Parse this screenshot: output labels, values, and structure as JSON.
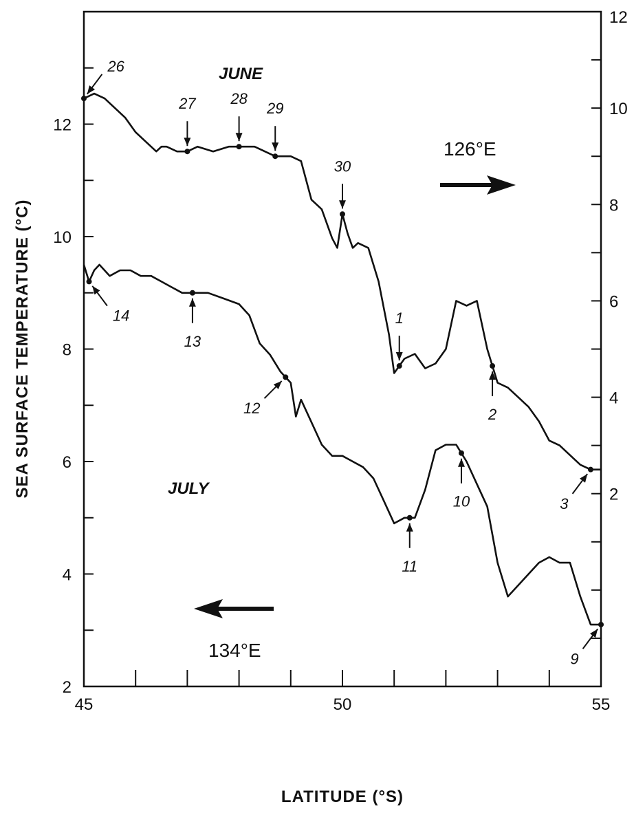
{
  "chart_data": {
    "type": "line",
    "xlabel": "LATITUDE (°S)",
    "ylabel": "SEA SURFACE TEMPERATURE (°C)",
    "xlim": [
      45,
      55
    ],
    "ylim_left": [
      2,
      14
    ],
    "ylim_right": [
      -2,
      12
    ],
    "x_ticks": [
      45,
      50,
      55
    ],
    "y_ticks_left": [
      2,
      4,
      6,
      8,
      10,
      12
    ],
    "y_ticks_right": [
      2,
      4,
      6,
      8,
      10,
      12
    ],
    "grid": false,
    "series": [
      {
        "name": "JUNE",
        "axis": "right",
        "longitude_label": "126°E",
        "direction": "right",
        "x": [
          45.0,
          45.2,
          45.4,
          45.6,
          45.8,
          46.0,
          46.2,
          46.4,
          46.5,
          46.6,
          46.8,
          47.0,
          47.2,
          47.5,
          47.8,
          48.0,
          48.3,
          48.5,
          48.7,
          49.0,
          49.2,
          49.4,
          49.6,
          49.8,
          49.9,
          50.0,
          50.1,
          50.2,
          50.3,
          50.5,
          50.7,
          50.9,
          51.0,
          51.2,
          51.4,
          51.6,
          51.8,
          52.0,
          52.2,
          52.4,
          52.6,
          52.8,
          53.0,
          53.2,
          53.4,
          53.6,
          53.8,
          54.0,
          54.2,
          54.4,
          54.6,
          54.8,
          55.0
        ],
        "values": [
          10.2,
          10.3,
          10.2,
          10.0,
          9.8,
          9.5,
          9.3,
          9.1,
          9.2,
          9.2,
          9.1,
          9.1,
          9.2,
          9.1,
          9.2,
          9.2,
          9.2,
          9.1,
          9.0,
          9.0,
          8.9,
          8.1,
          7.9,
          7.3,
          7.1,
          7.8,
          7.4,
          7.1,
          7.2,
          7.1,
          6.4,
          5.3,
          4.5,
          4.8,
          4.9,
          4.6,
          4.7,
          5.0,
          6.0,
          5.9,
          6.0,
          5.0,
          4.3,
          4.2,
          4.0,
          3.8,
          3.5,
          3.1,
          3.0,
          2.8,
          2.6,
          2.5,
          2.5
        ],
        "annotations": [
          {
            "label": "26",
            "x": 45.0
          },
          {
            "label": "27",
            "x": 47.0
          },
          {
            "label": "28",
            "x": 48.0
          },
          {
            "label": "29",
            "x": 48.7
          },
          {
            "label": "30",
            "x": 50.0
          },
          {
            "label": "1",
            "x": 51.1
          },
          {
            "label": "2",
            "x": 52.9
          },
          {
            "label": "3",
            "x": 54.8
          }
        ]
      },
      {
        "name": "JULY",
        "axis": "left",
        "longitude_label": "134°E",
        "direction": "left",
        "x": [
          45.0,
          45.1,
          45.2,
          45.3,
          45.5,
          45.7,
          45.9,
          46.1,
          46.3,
          46.5,
          46.7,
          46.9,
          47.1,
          47.4,
          47.7,
          48.0,
          48.2,
          48.4,
          48.6,
          48.8,
          49.0,
          49.1,
          49.2,
          49.4,
          49.6,
          49.8,
          50.0,
          50.2,
          50.4,
          50.6,
          50.8,
          51.0,
          51.2,
          51.4,
          51.6,
          51.8,
          52.0,
          52.2,
          52.4,
          52.6,
          52.8,
          53.0,
          53.2,
          53.4,
          53.6,
          53.8,
          54.0,
          54.2,
          54.4,
          54.6,
          54.8,
          55.0
        ],
        "values": [
          9.5,
          9.2,
          9.4,
          9.5,
          9.3,
          9.4,
          9.4,
          9.3,
          9.3,
          9.2,
          9.1,
          9.0,
          9.0,
          9.0,
          8.9,
          8.8,
          8.6,
          8.1,
          7.9,
          7.6,
          7.4,
          6.8,
          7.1,
          6.7,
          6.3,
          6.1,
          6.1,
          6.0,
          5.9,
          5.7,
          5.3,
          4.9,
          5.0,
          5.0,
          5.5,
          6.2,
          6.3,
          6.3,
          6.0,
          5.6,
          5.2,
          4.2,
          3.6,
          3.8,
          4.0,
          4.2,
          4.3,
          4.2,
          4.2,
          3.6,
          3.1,
          3.1
        ],
        "annotations": [
          {
            "label": "14",
            "x": 45.1
          },
          {
            "label": "13",
            "x": 47.1
          },
          {
            "label": "12",
            "x": 48.9
          },
          {
            "label": "11",
            "x": 51.3
          },
          {
            "label": "10",
            "x": 52.3
          },
          {
            "label": "9",
            "x": 55.0
          }
        ]
      }
    ]
  },
  "labels": {
    "june": "JUNE",
    "july": "JULY",
    "lon_june": "126°E",
    "lon_july": "134°E",
    "xlabel": "LATITUDE (°S)",
    "ylabel": "SEA SURFACE TEMPERATURE (°C)"
  }
}
